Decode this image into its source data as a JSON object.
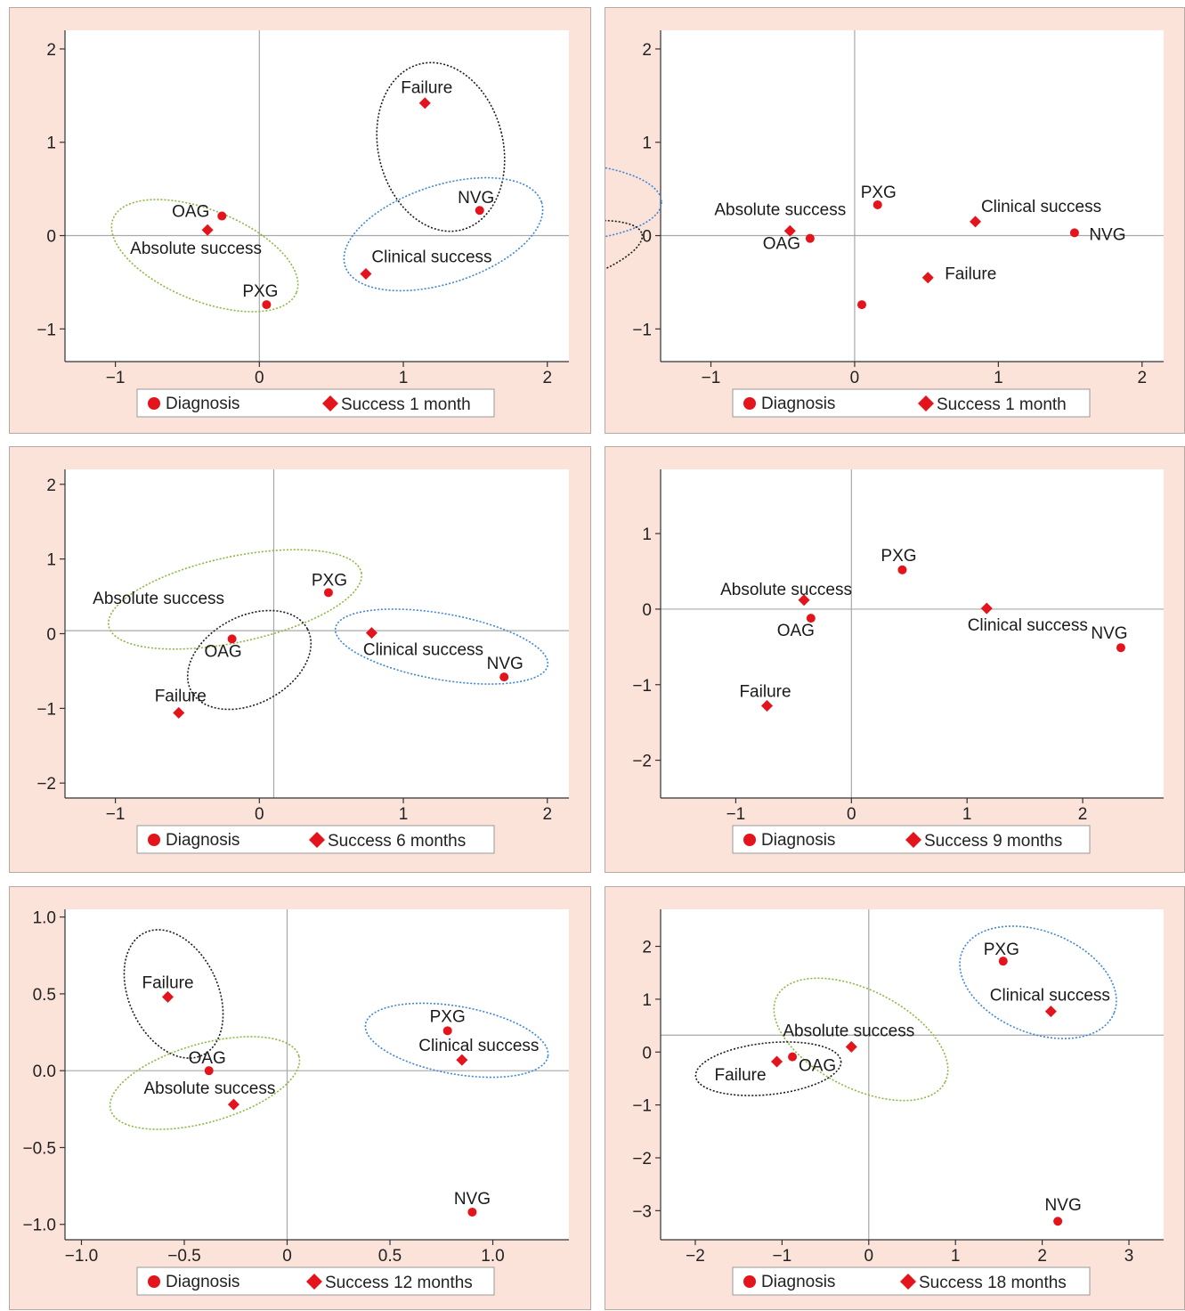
{
  "colors": {
    "marker": "#e3141b",
    "panel_bg": "#fbe3da",
    "ellipse_green": "#8cb840",
    "ellipse_blue": "#3d86d6",
    "ellipse_black": "#1a1a1a",
    "ref_line": "#a8a8a8"
  },
  "legend_marker_icons": [
    "circle-icon",
    "diamond-icon"
  ],
  "chart_data": [
    {
      "type": "scatter",
      "xlim": [
        -1.35,
        2.15
      ],
      "ylim": [
        -1.35,
        2.2
      ],
      "xticks": [
        -1,
        0,
        1,
        2
      ],
      "xtick_labels": [
        "−1",
        "0",
        "1",
        "2"
      ],
      "yticks": [
        -1,
        0,
        1,
        2
      ],
      "ytick_labels": [
        "−1",
        "0",
        "1",
        "2"
      ],
      "origin": [
        0,
        0
      ],
      "legend": {
        "diagnosis": "Diagnosis",
        "success": "Success 1 month"
      },
      "points": [
        {
          "label": "Failure",
          "x": 1.15,
          "y": 1.42,
          "marker": "diamond"
        },
        {
          "label": "NVG",
          "x": 1.53,
          "y": 0.27,
          "marker": "circle"
        },
        {
          "label": "OAG",
          "x": -0.26,
          "y": 0.21,
          "marker": "circle"
        },
        {
          "label": "Absolute success",
          "x": -0.36,
          "y": 0.06,
          "marker": "diamond"
        },
        {
          "label": "Clinical success",
          "x": 0.74,
          "y": -0.41,
          "marker": "diamond"
        },
        {
          "label": "PXG",
          "x": 0.05,
          "y": -0.74,
          "marker": "circle"
        }
      ],
      "groups": [
        {
          "color": "green",
          "members": [
            "OAG",
            "Absolute success",
            "PXG"
          ]
        },
        {
          "color": "black",
          "members": [
            "Failure",
            "NVG"
          ]
        },
        {
          "color": "blue",
          "members": [
            "NVG",
            "Clinical success"
          ]
        }
      ]
    },
    {
      "type": "scatter",
      "xlim": [
        -1.35,
        2.15
      ],
      "ylim": [
        -1.35,
        2.2
      ],
      "xticks": [
        -1,
        0,
        1,
        2
      ],
      "xtick_labels": [
        "−1",
        "0",
        "1",
        "2"
      ],
      "yticks": [
        -1,
        0,
        1,
        2
      ],
      "ytick_labels": [
        "−1",
        "0",
        "1",
        "2"
      ],
      "origin": [
        0,
        0
      ],
      "legend": {
        "diagnosis": "Diagnosis",
        "success": "Success 1 month"
      },
      "points": [
        {
          "label": "PXG",
          "x": 0.16,
          "y": 0.33,
          "marker": "circle"
        },
        {
          "label": "Absolute success",
          "x": -0.45,
          "y": 0.05,
          "marker": "diamond"
        },
        {
          "label": "OAG",
          "x": -0.31,
          "y": -0.03,
          "marker": "circle"
        },
        {
          "label": "Clinical success",
          "x": 0.84,
          "y": 0.15,
          "marker": "diamond"
        },
        {
          "label": "NVG",
          "x": 1.53,
          "y": 0.03,
          "marker": "circle"
        },
        {
          "label": "Failure",
          "x": 0.51,
          "y": -0.45,
          "marker": "diamond"
        },
        {
          "label": "",
          "x": 0.05,
          "y": -0.74,
          "marker": "circle"
        }
      ],
      "groups": [
        {
          "color": "green",
          "members": [
            "PXG",
            "Absolute success",
            "OAG"
          ]
        },
        {
          "color": "blue",
          "members": [
            "Clinical success",
            "NVG"
          ]
        },
        {
          "color": "black",
          "members": [
            "NVG",
            "Failure"
          ]
        }
      ]
    },
    {
      "type": "scatter",
      "xlim": [
        -1.35,
        2.15
      ],
      "ylim": [
        -2.2,
        2.2
      ],
      "xticks": [
        -1,
        0,
        1,
        2
      ],
      "xtick_labels": [
        "−1",
        "0",
        "1",
        "2"
      ],
      "yticks": [
        -2,
        -1,
        0,
        1,
        2
      ],
      "ytick_labels": [
        "−2",
        "−1",
        "0",
        "1",
        "2"
      ],
      "origin": [
        0.1,
        0.04
      ],
      "legend": {
        "diagnosis": "Diagnosis",
        "success": "Success 6 months"
      },
      "points": [
        {
          "label": "PXG",
          "x": 0.48,
          "y": 0.55,
          "marker": "circle"
        },
        {
          "label": "Absolute success",
          "x": -0.7,
          "y": 0.4,
          "marker": "none"
        },
        {
          "label": "OAG",
          "x": -0.19,
          "y": -0.07,
          "marker": "circle"
        },
        {
          "label": "Clinical success",
          "x": 0.78,
          "y": 0.01,
          "marker": "diamond"
        },
        {
          "label": "NVG",
          "x": 1.7,
          "y": -0.58,
          "marker": "circle"
        },
        {
          "label": "Failure",
          "x": -0.56,
          "y": -1.06,
          "marker": "diamond"
        }
      ],
      "groups": [
        {
          "color": "green",
          "members": [
            "Absolute success",
            "PXG"
          ]
        },
        {
          "color": "black",
          "members": [
            "OAG",
            "Failure"
          ]
        },
        {
          "color": "blue",
          "members": [
            "Clinical success",
            "NVG"
          ]
        }
      ]
    },
    {
      "type": "scatter",
      "xlim": [
        -1.65,
        2.7
      ],
      "ylim": [
        -2.5,
        1.85
      ],
      "xticks": [
        -1,
        0,
        1,
        2
      ],
      "xtick_labels": [
        "−1",
        "0",
        "1",
        "2"
      ],
      "yticks": [
        -2,
        -1,
        0,
        1
      ],
      "ytick_labels": [
        "−2",
        "−1",
        "0",
        "1"
      ],
      "origin": [
        0,
        0
      ],
      "legend": {
        "diagnosis": "Diagnosis",
        "success": "Success 9 months"
      },
      "points": [
        {
          "label": "PXG",
          "x": 0.44,
          "y": 0.52,
          "marker": "circle"
        },
        {
          "label": "Absolute success",
          "x": -0.41,
          "y": 0.12,
          "marker": "diamond"
        },
        {
          "label": "OAG",
          "x": -0.35,
          "y": -0.12,
          "marker": "circle"
        },
        {
          "label": "Clinical success",
          "x": 1.17,
          "y": 0.01,
          "marker": "diamond"
        },
        {
          "label": "NVG",
          "x": 2.33,
          "y": -0.51,
          "marker": "circle"
        },
        {
          "label": "Failure",
          "x": -0.73,
          "y": -1.28,
          "marker": "diamond"
        }
      ],
      "groups": [
        {
          "color": "green",
          "members": [
            "Absolute success",
            "PXG"
          ]
        },
        {
          "color": "black",
          "members": [
            "OAG",
            "Failure"
          ]
        },
        {
          "color": "blue",
          "members": [
            "Clinical success",
            "NVG"
          ]
        }
      ]
    },
    {
      "type": "scatter",
      "xlim": [
        -1.08,
        1.37
      ],
      "ylim": [
        -1.1,
        1.05
      ],
      "xticks": [
        -1,
        -0.5,
        0,
        0.5,
        1
      ],
      "xtick_labels": [
        "−1.0",
        "−0.5",
        "0",
        "0.5",
        "1.0"
      ],
      "yticks": [
        -1,
        -0.5,
        0,
        0.5,
        1
      ],
      "ytick_labels": [
        "−1.0",
        "−0.5",
        "0.0",
        "0.5",
        "1.0"
      ],
      "origin": [
        0,
        0
      ],
      "legend": {
        "diagnosis": "Diagnosis",
        "success": "Success 12 months"
      },
      "points": [
        {
          "label": "Failure",
          "x": -0.58,
          "y": 0.48,
          "marker": "diamond"
        },
        {
          "label": "OAG",
          "x": -0.38,
          "y": 0.0,
          "marker": "circle"
        },
        {
          "label": "Absolute success",
          "x": -0.26,
          "y": -0.22,
          "marker": "diamond"
        },
        {
          "label": "PXG",
          "x": 0.78,
          "y": 0.26,
          "marker": "circle"
        },
        {
          "label": "Clinical success",
          "x": 0.85,
          "y": 0.07,
          "marker": "diamond"
        },
        {
          "label": "NVG",
          "x": 0.9,
          "y": -0.92,
          "marker": "circle"
        }
      ],
      "groups": [
        {
          "color": "black",
          "members": [
            "Failure",
            "OAG"
          ]
        },
        {
          "color": "green",
          "members": [
            "OAG",
            "Absolute success"
          ]
        },
        {
          "color": "blue",
          "members": [
            "PXG",
            "Clinical success"
          ]
        }
      ]
    },
    {
      "type": "scatter",
      "xlim": [
        -2.4,
        3.4
      ],
      "ylim": [
        -3.55,
        2.7
      ],
      "xticks": [
        -2,
        -1,
        0,
        1,
        2,
        3
      ],
      "xtick_labels": [
        "−2",
        "−1",
        "0",
        "1",
        "2",
        "3"
      ],
      "yticks": [
        -3,
        -2,
        -1,
        0,
        1,
        2
      ],
      "ytick_labels": [
        "−3",
        "−2",
        "−1",
        "0",
        "1",
        "2"
      ],
      "origin": [
        0,
        0.32
      ],
      "legend": {
        "diagnosis": "Diagnosis",
        "success": "Success 18 months"
      },
      "points": [
        {
          "label": "PXG",
          "x": 1.55,
          "y": 1.72,
          "marker": "circle"
        },
        {
          "label": "Clinical success",
          "x": 2.1,
          "y": 0.77,
          "marker": "diamond"
        },
        {
          "label": "Absolute success",
          "x": -0.2,
          "y": 0.1,
          "marker": "diamond"
        },
        {
          "label": "OAG",
          "x": -0.88,
          "y": -0.09,
          "marker": "circle"
        },
        {
          "label": "Failure",
          "x": -1.06,
          "y": -0.18,
          "marker": "diamond"
        },
        {
          "label": "NVG",
          "x": 2.18,
          "y": -3.2,
          "marker": "circle"
        }
      ],
      "groups": [
        {
          "color": "blue",
          "members": [
            "PXG",
            "Clinical success"
          ]
        },
        {
          "color": "green",
          "members": [
            "Absolute success",
            "OAG"
          ]
        },
        {
          "color": "black",
          "members": [
            "Failure",
            "OAG"
          ]
        }
      ]
    }
  ]
}
